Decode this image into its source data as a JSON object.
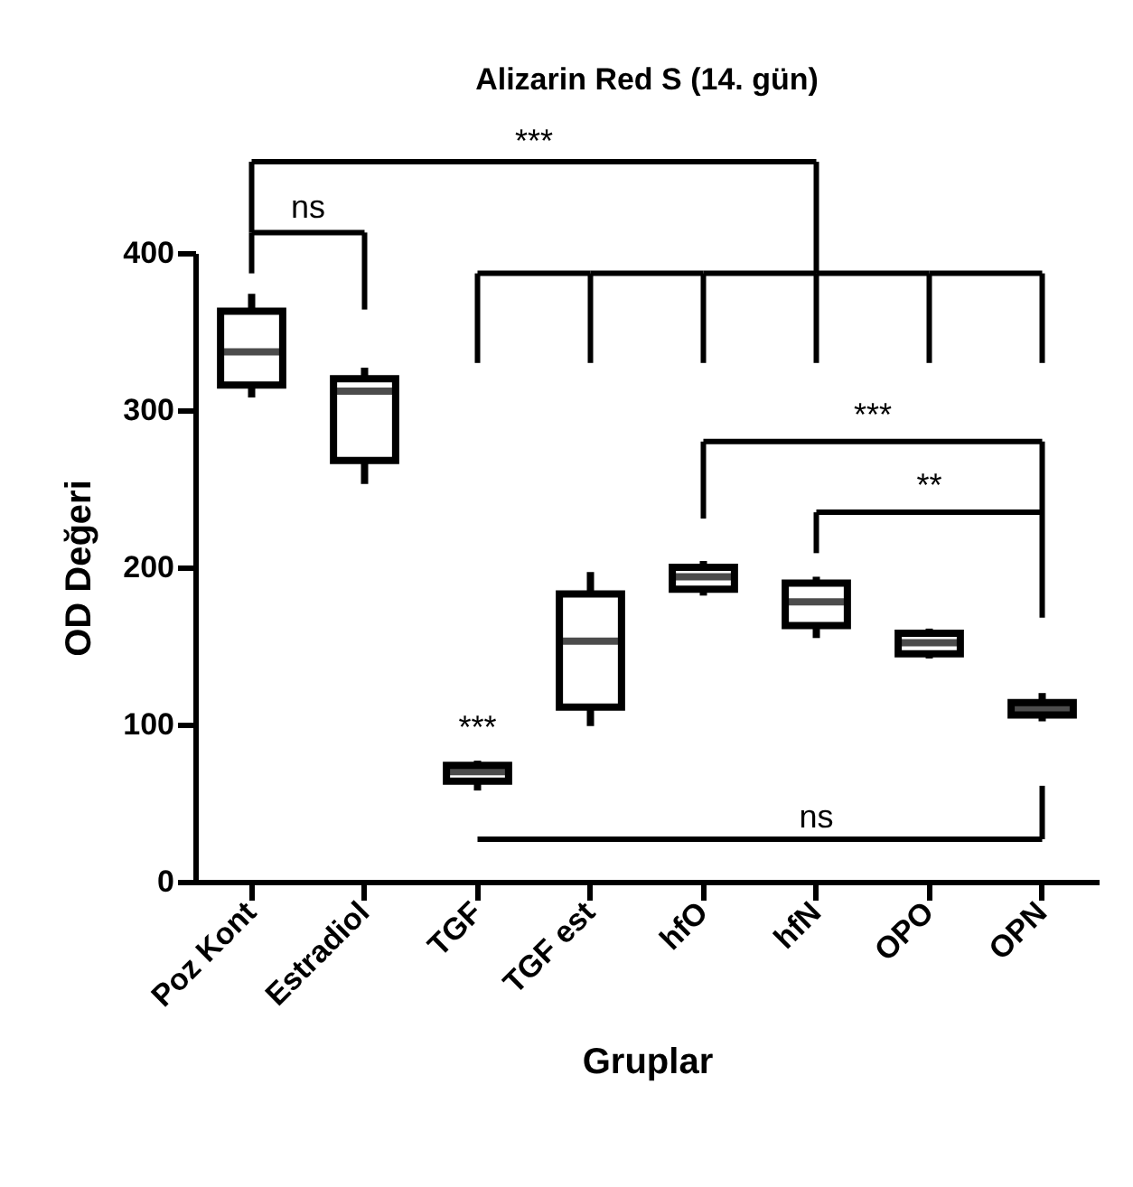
{
  "chart_data": {
    "type": "box",
    "title": "Alizarin Red S (14. gün)",
    "xlabel": "Gruplar",
    "ylabel": "OD Değeri",
    "categories": [
      "Poz Kont",
      "Estradiol",
      "TGF",
      "TGF est",
      "hfO",
      "hfN",
      "OPO",
      "OPN"
    ],
    "boxes": [
      {
        "low": 308,
        "q1": 316,
        "median": 337,
        "q3": 363,
        "high": 374
      },
      {
        "low": 253,
        "q1": 268,
        "median": 312,
        "q3": 320,
        "high": 327
      },
      {
        "low": 58,
        "q1": 64,
        "median": 70,
        "q3": 74,
        "high": 77
      },
      {
        "low": 99,
        "q1": 111,
        "median": 153,
        "q3": 183,
        "high": 197
      },
      {
        "low": 182,
        "q1": 186,
        "median": 194,
        "q3": 200,
        "high": 204
      },
      {
        "low": 155,
        "q1": 163,
        "median": 178,
        "q3": 190,
        "high": 194
      },
      {
        "low": 142,
        "q1": 145,
        "median": 152,
        "q3": 158,
        "high": 161
      },
      {
        "low": 102,
        "q1": 106,
        "median": 110,
        "q3": 114,
        "high": 120
      }
    ],
    "color": "#000000",
    "ylim": [
      0,
      400
    ],
    "yticks": [
      0,
      100,
      200,
      300,
      400
    ],
    "grid": false,
    "annotations": [
      "ns",
      "***",
      "***",
      "**",
      "ns",
      "***"
    ]
  }
}
